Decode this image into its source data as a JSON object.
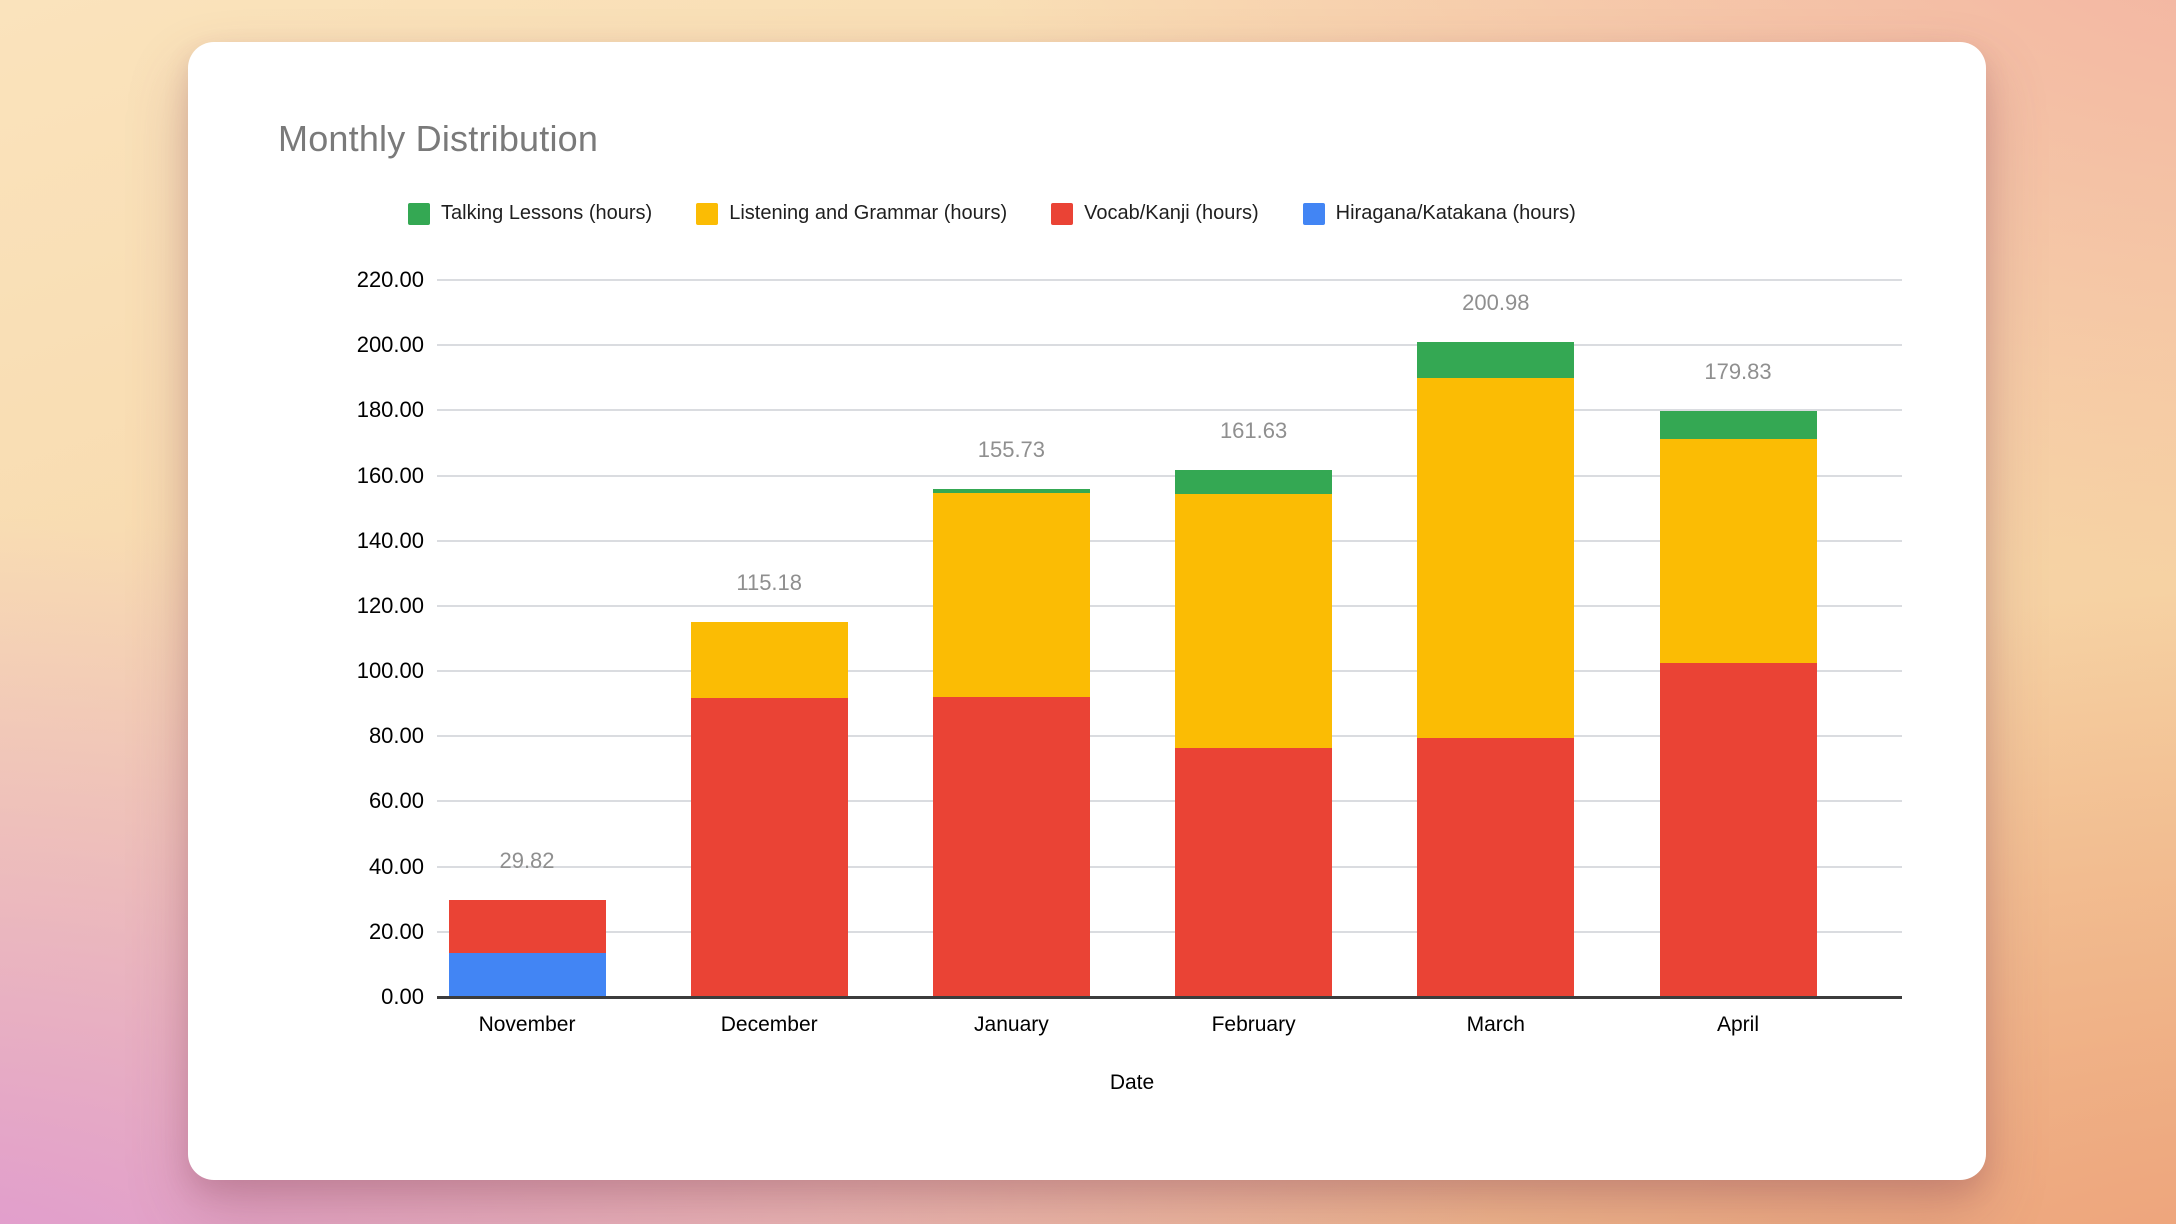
{
  "page": {
    "background_corner_colors": {
      "top_left": "#fae3bc",
      "top_right": "#f2afa0",
      "bottom_left": "#de96d2",
      "bottom_right": "#ec9d76"
    },
    "card_background": "#ffffff"
  },
  "chart_data": {
    "type": "bar",
    "stacked": true,
    "title": "Monthly Distribution",
    "title_color": "#7a7a7a",
    "xlabel": "Date",
    "ylabel": "",
    "ylim": [
      0,
      220
    ],
    "y_tick_step": 20,
    "y_tick_labels": [
      "0.00",
      "20.00",
      "40.00",
      "60.00",
      "80.00",
      "100.00",
      "120.00",
      "140.00",
      "160.00",
      "180.00",
      "200.00",
      "220.00"
    ],
    "grid": true,
    "gridline_color": "#dadce0",
    "baseline_color": "#3c3c3c",
    "legend_position": "top",
    "legend": [
      {
        "id": "talking-lessons",
        "label": "Talking Lessons (hours)",
        "color": "#34a853"
      },
      {
        "id": "listening-grammar",
        "label": "Listening and Grammar (hours)",
        "color": "#fbbc04"
      },
      {
        "id": "vocab-kanji",
        "label": "Vocab/Kanji (hours)",
        "color": "#ea4335"
      },
      {
        "id": "hiragana-katakana",
        "label": "Hiragana/Katakana (hours)",
        "color": "#4285f4"
      }
    ],
    "categories": [
      "November",
      "December",
      "January",
      "February",
      "March",
      "April"
    ],
    "series": [
      {
        "id": "hiragana-katakana",
        "name": "Hiragana/Katakana (hours)",
        "color": "#4285f4",
        "values": [
          13.45,
          0,
          0,
          0,
          0,
          0
        ]
      },
      {
        "id": "vocab-kanji",
        "name": "Vocab/Kanji (hours)",
        "color": "#ea4335",
        "values": [
          16.37,
          91.8,
          91.9,
          76.5,
          79.5,
          102.4
        ]
      },
      {
        "id": "listening-grammar",
        "name": "Listening and Grammar (hours)",
        "color": "#fbbc04",
        "values": [
          0,
          23.38,
          62.7,
          77.9,
          110.5,
          68.9
        ]
      },
      {
        "id": "talking-lessons",
        "name": "Talking Lessons (hours)",
        "color": "#34a853",
        "values": [
          0,
          0,
          1.13,
          7.23,
          10.98,
          8.53
        ]
      }
    ],
    "totals": [
      "29.82",
      "115.18",
      "155.73",
      "161.63",
      "200.98",
      "179.83"
    ],
    "total_label_color": "#8f8f8f"
  }
}
